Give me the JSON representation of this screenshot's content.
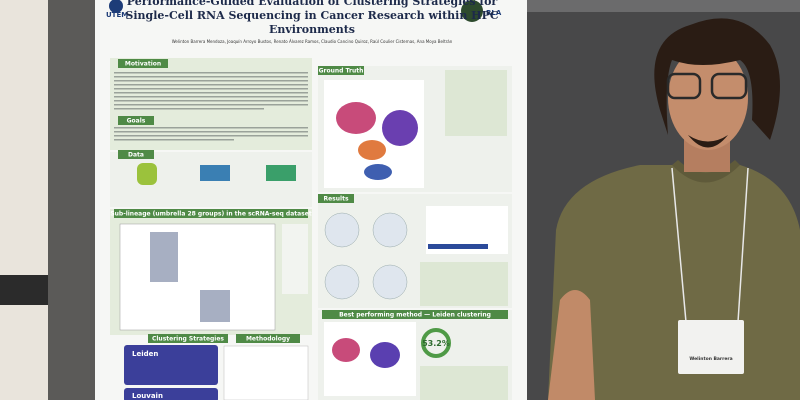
{
  "poster": {
    "title": [
      "Performance-Guided Evaluation of Clustering Strategies for",
      "Single-Cell RNA Sequencing in Cancer Research within HPC",
      "Environments"
    ],
    "logos": [
      "UTEM",
      "RLA"
    ],
    "authors": "Welinton Barrera Mendoza, Joaquín Arroyo Bustos, Renato Álvarez Ramos, Claudio Cancino Quiroz, Raúl Coulier Cisternas, Ana Moya Beltrán",
    "sections": [
      "Motivation",
      "Goals",
      "Data",
      "Ground Truth",
      "Sub-lineage (umbrella 28 groups) in the scRNA-seq dataset",
      "Results",
      "Clustering Strategies",
      "Methodology",
      "Best performing method — Leiden clustering"
    ],
    "methods": [
      "Leiden",
      "Louvain"
    ],
    "score": "53.2%"
  },
  "badge": {
    "name": "Welinton Barrera"
  }
}
